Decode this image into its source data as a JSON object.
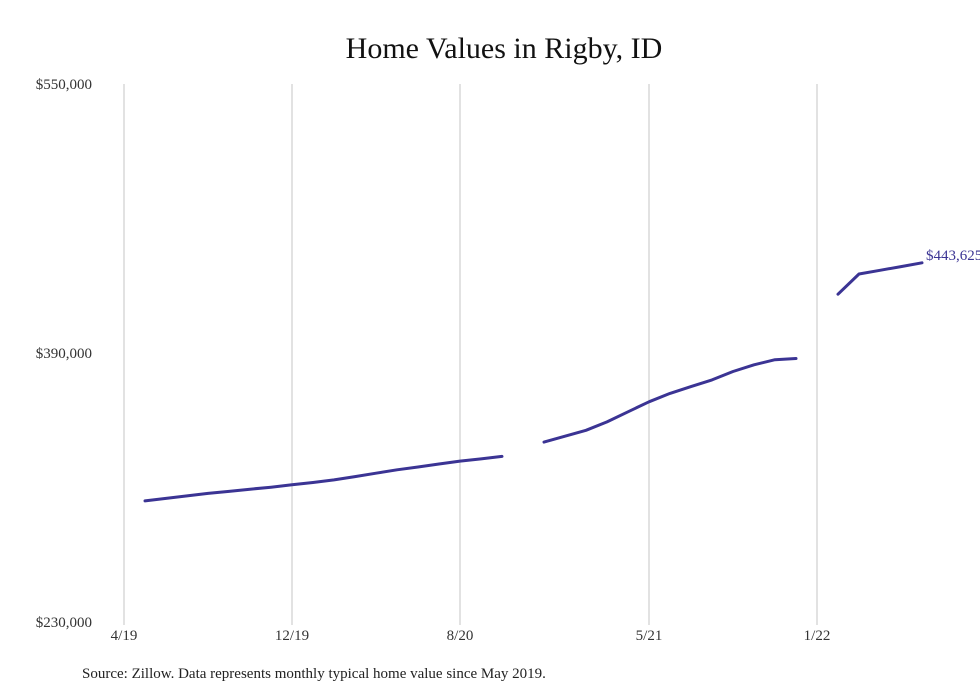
{
  "chart_data": {
    "type": "line",
    "title": "Home Values in Rigby, ID",
    "xlabel": "",
    "ylabel": "",
    "x_ticks": [
      {
        "label": "4/19",
        "date": "2019-04"
      },
      {
        "label": "12/19",
        "date": "2019-12"
      },
      {
        "label": "8/20",
        "date": "2020-08"
      },
      {
        "label": "5/21",
        "date": "2021-05"
      },
      {
        "label": "1/22",
        "date": "2022-01"
      }
    ],
    "y_ticks": [
      "$550,000",
      "$390,000",
      "$230,000"
    ],
    "ylim": [
      230000,
      550000
    ],
    "xlim": [
      "2019-04",
      "2022-07"
    ],
    "grid": "vertical",
    "legend": "none",
    "line_color": "#3b3494",
    "series": [
      {
        "values": [
          [
            "2019-05",
            302000
          ],
          [
            "2019-06",
            303500
          ],
          [
            "2019-07",
            305000
          ],
          [
            "2019-08",
            306500
          ],
          [
            "2019-09",
            307700
          ],
          [
            "2019-10",
            309000
          ],
          [
            "2019-11",
            310200
          ],
          [
            "2019-12",
            311600
          ],
          [
            "2020-01",
            313000
          ],
          [
            "2020-02",
            314500
          ],
          [
            "2020-03",
            316500
          ],
          [
            "2020-04",
            318500
          ],
          [
            "2020-05",
            320500
          ],
          [
            "2020-06",
            322200
          ],
          [
            "2020-07",
            324000
          ],
          [
            "2020-08",
            325700
          ],
          [
            "2020-09",
            327000
          ],
          [
            "2020-10",
            328500
          ],
          [
            "2020-11",
            null
          ],
          [
            "2020-12",
            337000
          ],
          [
            "2021-01",
            340500
          ],
          [
            "2021-02",
            344000
          ],
          [
            "2021-03",
            349000
          ],
          [
            "2021-04",
            355000
          ],
          [
            "2021-05",
            361000
          ],
          [
            "2021-06",
            366000
          ],
          [
            "2021-07",
            370000
          ],
          [
            "2021-08",
            374000
          ],
          [
            "2021-09",
            379000
          ],
          [
            "2021-10",
            383000
          ],
          [
            "2021-11",
            386000
          ],
          [
            "2021-12",
            386700
          ],
          [
            "2022-01",
            null
          ],
          [
            "2022-02",
            425000
          ],
          [
            "2022-03",
            437000
          ],
          [
            "2022-04",
            439200
          ],
          [
            "2022-05",
            441400
          ],
          [
            "2022-06",
            443625
          ]
        ]
      }
    ],
    "end_label": "$443,625"
  },
  "source_note": "Source: Zillow. Data represents monthly typical home value since May 2019."
}
